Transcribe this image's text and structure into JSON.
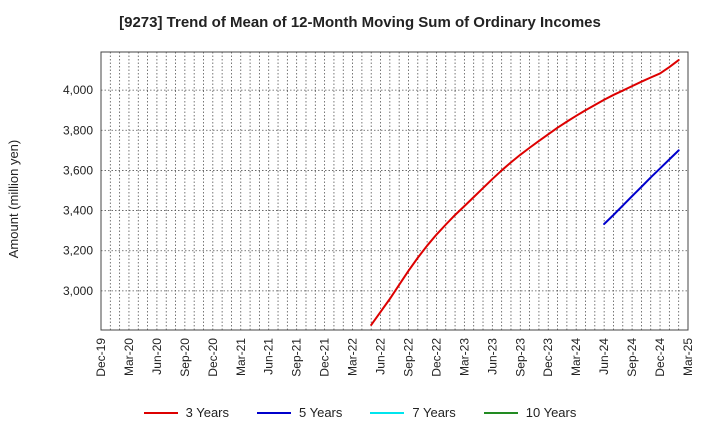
{
  "title": "[9273]  Trend of Mean of 12-Month Moving Sum of Ordinary Incomes",
  "chart_data": {
    "type": "line",
    "title": "[9273]  Trend of Mean of 12-Month Moving Sum of Ordinary Incomes",
    "xlabel": "",
    "ylabel": "Amount (million yen)",
    "x_ticks": [
      "Dec-19",
      "Mar-20",
      "Jun-20",
      "Sep-20",
      "Dec-20",
      "Mar-21",
      "Jun-21",
      "Sep-21",
      "Dec-21",
      "Mar-22",
      "Jun-22",
      "Sep-22",
      "Dec-22",
      "Mar-23",
      "Jun-23",
      "Sep-23",
      "Dec-23",
      "Mar-24",
      "Jun-24",
      "Sep-24",
      "Dec-24",
      "Mar-25"
    ],
    "y_ticks": [
      3000,
      3200,
      3400,
      3600,
      3800,
      4000
    ],
    "y_tick_labels": [
      "3,000",
      "3,200",
      "3,400",
      "3,600",
      "3,800",
      "4,000"
    ],
    "ylim": [
      2805,
      4190
    ],
    "grid": true,
    "legend_position": "bottom",
    "series": [
      {
        "name": "3 Years",
        "color": "#dd0000",
        "points": [
          [
            "May-22",
            2830
          ],
          [
            "Jun-22",
            2895
          ],
          [
            "Jul-22",
            2960
          ],
          [
            "Aug-22",
            3030
          ],
          [
            "Sep-22",
            3100
          ],
          [
            "Oct-22",
            3165
          ],
          [
            "Nov-22",
            3225
          ],
          [
            "Dec-22",
            3280
          ],
          [
            "Jan-23",
            3330
          ],
          [
            "Feb-23",
            3378
          ],
          [
            "Mar-23",
            3422
          ],
          [
            "Apr-23",
            3467
          ],
          [
            "May-23",
            3512
          ],
          [
            "Jun-23",
            3557
          ],
          [
            "Jul-23",
            3600
          ],
          [
            "Aug-23",
            3640
          ],
          [
            "Sep-23",
            3678
          ],
          [
            "Oct-23",
            3713
          ],
          [
            "Nov-23",
            3747
          ],
          [
            "Dec-23",
            3780
          ],
          [
            "Jan-24",
            3813
          ],
          [
            "Feb-24",
            3843
          ],
          [
            "Mar-24",
            3872
          ],
          [
            "Apr-24",
            3900
          ],
          [
            "May-24",
            3926
          ],
          [
            "Jun-24",
            3952
          ],
          [
            "Jul-24",
            3976
          ],
          [
            "Aug-24",
            3998
          ],
          [
            "Sep-24",
            4020
          ],
          [
            "Oct-24",
            4042
          ],
          [
            "Nov-24",
            4063
          ],
          [
            "Dec-24",
            4083
          ],
          [
            "Jan-25",
            4115
          ],
          [
            "Feb-25",
            4150
          ]
        ]
      },
      {
        "name": "5 Years",
        "color": "#0000cc",
        "points": [
          [
            "Jun-24",
            3333
          ],
          [
            "Jul-24",
            3378
          ],
          [
            "Aug-24",
            3425
          ],
          [
            "Sep-24",
            3472
          ],
          [
            "Oct-24",
            3518
          ],
          [
            "Nov-24",
            3565
          ],
          [
            "Dec-24",
            3610
          ],
          [
            "Jan-25",
            3655
          ],
          [
            "Feb-25",
            3700
          ]
        ]
      },
      {
        "name": "7 Years",
        "color": "#00e5ee",
        "points": []
      },
      {
        "name": "10 Years",
        "color": "#228b22",
        "points": []
      }
    ]
  }
}
